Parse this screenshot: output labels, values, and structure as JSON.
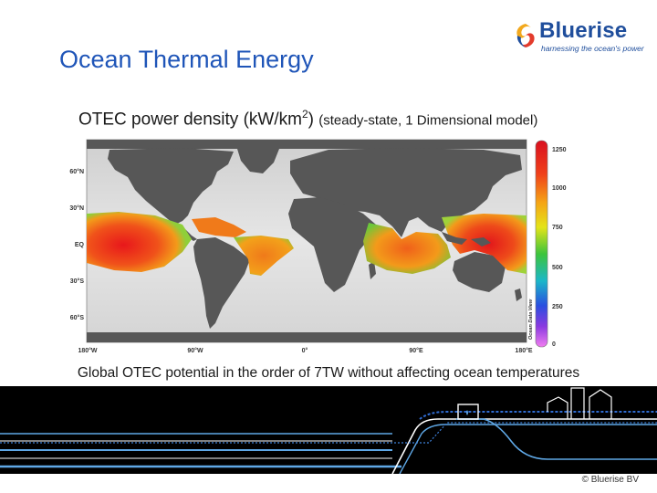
{
  "logo": {
    "name": "Bluerise",
    "tagline": "harnessing the ocean's power"
  },
  "slide_title": "Ocean Thermal Energy",
  "subtitle": {
    "main": "OTEC power density (kW/km",
    "superscript": "2",
    "close": ")",
    "note": "(steady-state, 1 Dimensional model)"
  },
  "map": {
    "lat_labels": [
      "60°N",
      "30°N",
      "EQ",
      "30°S",
      "60°S"
    ],
    "lon_labels": [
      "180°W",
      "90°W",
      "0°",
      "90°E",
      "180°E"
    ],
    "colorbar_ticks": [
      "1250",
      "1000",
      "750",
      "500",
      "250",
      "0"
    ],
    "colorbar_label": "Ocean Data View",
    "colors": {
      "land": "#575757",
      "ocean_light": "#dcdcdc",
      "high": "#e01a1a",
      "mid": "#f07d12",
      "low": "#2fb52f"
    }
  },
  "caption": "Global OTEC potential in the order of 7TW without affecting ocean temperatures",
  "copyright": "© Bluerise BV"
}
